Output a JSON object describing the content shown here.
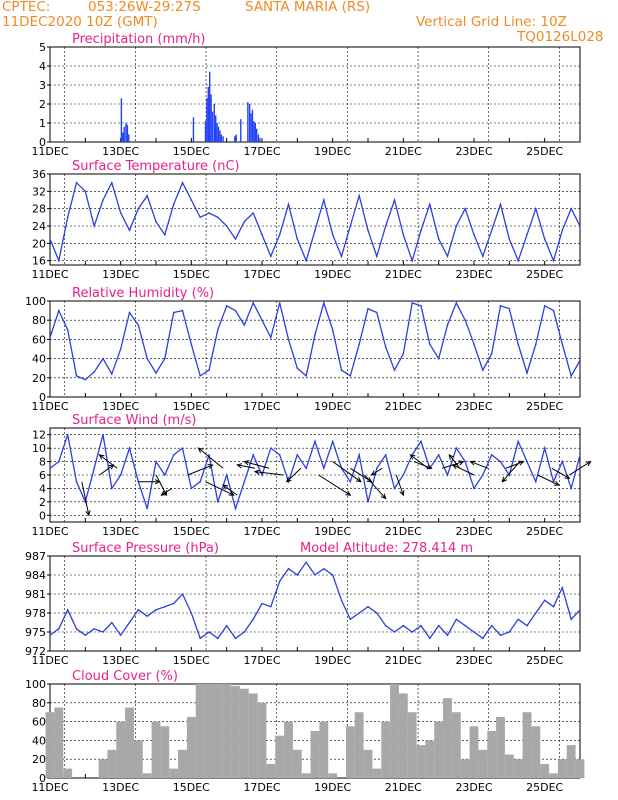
{
  "header": {
    "center_label": "CPTEC:",
    "coords": "053:26W-29:27S",
    "station": "SANTA MARIA (RS)",
    "run": "11DEC2020 10Z (GMT)",
    "grid_note": "Vertical Grid Line: 10Z",
    "model_code": "TQ0126L028"
  },
  "colors": {
    "header": "#f08a24",
    "title": "#e8208c",
    "line": "#2b3fe0",
    "bar": "#2442f5",
    "cloud": "#a8a8a8",
    "arrow": "#000000"
  },
  "chart_data": [
    {
      "type": "bar",
      "title": "Precipitation (mm/h)",
      "ylim": [
        0,
        5
      ],
      "yticks": [
        0,
        1,
        2,
        3,
        4,
        5
      ],
      "xticks": [
        "11DEC",
        "13DEC",
        "15DEC",
        "17DEC",
        "19DEC",
        "21DEC",
        "23DEC",
        "25DEC"
      ],
      "x_units": "days since 11DEC 00Z",
      "x": [
        2.0,
        2.04,
        2.08,
        2.13,
        2.17,
        2.21,
        4.04,
        4.38,
        4.42,
        4.46,
        4.5,
        4.54,
        4.58,
        4.63,
        4.67,
        4.71,
        4.75,
        4.79,
        4.83,
        4.88,
        5.21,
        5.25,
        5.38,
        5.58,
        5.63,
        5.67,
        5.71,
        5.75,
        5.79,
        5.83,
        5.88,
        5.92,
        7.0,
        8.5,
        10.5,
        12.0,
        13.5
      ],
      "values": [
        2.3,
        0.5,
        0.8,
        1.0,
        0.9,
        0.4,
        1.3,
        1.1,
        2.3,
        2.9,
        3.7,
        2.5,
        1.6,
        2.0,
        1.4,
        1.0,
        0.8,
        0.6,
        0.4,
        0.3,
        0.3,
        0.4,
        1.2,
        2.1,
        2.0,
        1.5,
        1.7,
        1.1,
        1.0,
        0.7,
        0.4,
        0.2,
        0.05,
        0.05,
        0.05,
        0.05,
        0.05
      ]
    },
    {
      "type": "line",
      "title": "Surface Temperature (nC)",
      "ylim": [
        15,
        36
      ],
      "yticks": [
        16,
        20,
        24,
        28,
        32,
        36
      ],
      "xticks": [
        "11DEC",
        "13DEC",
        "15DEC",
        "17DEC",
        "19DEC",
        "21DEC",
        "23DEC",
        "25DEC"
      ],
      "x": [
        0,
        0.25,
        0.5,
        0.75,
        1,
        1.25,
        1.5,
        1.75,
        2,
        2.25,
        2.5,
        2.75,
        3,
        3.25,
        3.5,
        3.75,
        4,
        4.25,
        4.5,
        4.75,
        5,
        5.25,
        5.5,
        5.75,
        6,
        6.25,
        6.5,
        6.75,
        7,
        7.25,
        7.5,
        7.75,
        8,
        8.25,
        8.5,
        8.75,
        9,
        9.25,
        9.5,
        9.75,
        10,
        10.25,
        10.5,
        10.75,
        11,
        11.25,
        11.5,
        11.75,
        12,
        12.25,
        12.5,
        12.75,
        13,
        13.25,
        13.5,
        13.75,
        14,
        14.25,
        14.5,
        14.75,
        15
      ],
      "values": [
        21,
        16,
        26,
        34,
        32,
        24,
        30,
        34,
        27,
        23,
        28,
        31,
        25,
        22,
        29,
        34,
        30,
        26,
        27,
        26,
        24,
        21,
        25,
        27,
        22,
        17,
        22,
        29,
        21,
        16,
        23,
        30,
        22,
        17,
        24,
        31,
        23,
        17,
        24,
        30,
        22,
        16,
        23,
        29,
        21,
        17,
        24,
        28,
        22,
        17,
        23,
        29,
        21,
        16,
        22,
        28,
        21,
        16,
        23,
        28,
        24
      ],
      "xlabel": "",
      "ylabel": ""
    },
    {
      "type": "line",
      "title": "Relative Humidity (%)",
      "ylim": [
        0,
        100
      ],
      "yticks": [
        0,
        20,
        40,
        60,
        80,
        100
      ],
      "xticks": [
        "11DEC",
        "13DEC",
        "15DEC",
        "17DEC",
        "19DEC",
        "21DEC",
        "23DEC",
        "25DEC"
      ],
      "x": [
        0,
        0.25,
        0.5,
        0.75,
        1,
        1.25,
        1.5,
        1.75,
        2,
        2.25,
        2.5,
        2.75,
        3,
        3.25,
        3.5,
        3.75,
        4,
        4.25,
        4.5,
        4.75,
        5,
        5.25,
        5.5,
        5.75,
        6,
        6.25,
        6.5,
        6.75,
        7,
        7.25,
        7.5,
        7.75,
        8,
        8.25,
        8.5,
        8.75,
        9,
        9.25,
        9.5,
        9.75,
        10,
        10.25,
        10.5,
        10.75,
        11,
        11.25,
        11.5,
        11.75,
        12,
        12.25,
        12.5,
        12.75,
        13,
        13.25,
        13.5,
        13.75,
        14,
        14.25,
        14.5,
        14.75,
        15
      ],
      "values": [
        62,
        90,
        70,
        22,
        18,
        26,
        40,
        24,
        50,
        88,
        75,
        40,
        25,
        40,
        88,
        90,
        55,
        22,
        28,
        70,
        95,
        90,
        75,
        98,
        80,
        62,
        98,
        60,
        30,
        22,
        65,
        98,
        70,
        28,
        22,
        55,
        92,
        88,
        52,
        28,
        45,
        98,
        95,
        55,
        40,
        75,
        98,
        80,
        55,
        28,
        45,
        95,
        92,
        55,
        25,
        55,
        95,
        90,
        55,
        22,
        38
      ],
      "xlabel": "",
      "ylabel": ""
    },
    {
      "type": "line",
      "title": "Surface Wind (m/s)",
      "ylim": [
        -1,
        13
      ],
      "yticks": [
        0,
        2,
        4,
        6,
        8,
        10,
        12
      ],
      "xticks": [
        "11DEC",
        "13DEC",
        "15DEC",
        "17DEC",
        "19DEC",
        "21DEC",
        "23DEC",
        "25DEC"
      ],
      "x": [
        0,
        0.25,
        0.5,
        0.75,
        1,
        1.25,
        1.5,
        1.75,
        2,
        2.25,
        2.5,
        2.75,
        3,
        3.25,
        3.5,
        3.75,
        4,
        4.25,
        4.5,
        4.75,
        5,
        5.25,
        5.5,
        5.75,
        6,
        6.25,
        6.5,
        6.75,
        7,
        7.25,
        7.5,
        7.75,
        8,
        8.25,
        8.5,
        8.75,
        9,
        9.25,
        9.5,
        9.75,
        10,
        10.25,
        10.5,
        10.75,
        11,
        11.25,
        11.5,
        11.75,
        12,
        12.25,
        12.5,
        12.75,
        13,
        13.25,
        13.5,
        13.75,
        14,
        14.25,
        14.5,
        14.75,
        15
      ],
      "values": [
        7,
        8,
        12,
        5,
        2,
        7,
        12,
        4,
        6,
        10,
        5,
        1,
        8,
        6,
        9,
        10,
        4,
        5,
        9,
        2,
        6,
        1,
        5,
        9,
        6,
        10,
        9,
        5,
        9,
        7,
        11,
        7,
        11,
        7,
        5,
        9,
        2,
        7,
        9,
        4,
        6,
        9,
        11,
        7,
        9,
        6,
        10,
        8,
        4,
        6,
        9,
        8,
        6,
        11,
        8,
        5,
        10,
        5,
        8,
        4,
        9
      ],
      "arrows_x": [
        0.9,
        1.4,
        1.9,
        2.5,
        3.0,
        3.45,
        3.9,
        4.4,
        4.9,
        5.3,
        5.8,
        6.2,
        6.6,
        7.1,
        7.6,
        8.0,
        8.5,
        8.9,
        9.4,
        9.8,
        10.3,
        10.7,
        11.1,
        11.6,
        12.0,
        12.4,
        12.9,
        13.3,
        13.8,
        14.2,
        14.7
      ],
      "arrows_y": [
        5,
        6,
        7,
        5,
        6,
        4,
        6,
        5,
        7,
        3,
        7,
        7,
        6,
        7,
        6,
        8,
        7,
        6,
        7,
        6,
        8,
        7,
        7,
        7,
        6,
        7,
        7,
        8,
        6,
        7,
        6
      ],
      "arrows_dx": [
        0.2,
        0.4,
        -0.5,
        0.6,
        0.3,
        -0.3,
        0.7,
        0.8,
        -0.7,
        -0.4,
        -0.5,
        -0.7,
        -0.8,
        -0.4,
        0.9,
        0.8,
        0.6,
        0.6,
        -0.3,
        0.2,
        0.5,
        -0.5,
        0.6,
        -0.3,
        -0.6,
        -0.5,
        0.5,
        -0.5,
        0.6,
        0.5,
        0.6
      ],
      "arrows_dy": [
        -5,
        1.5,
        2,
        0,
        -3,
        -1,
        1.5,
        -2,
        3,
        1.5,
        0.5,
        1,
        0.5,
        -2,
        -3,
        -3,
        -2,
        -3.5,
        -1,
        -3,
        -1,
        2,
        1,
        2,
        1.5,
        1,
        1,
        -3,
        -1.5,
        -1.5,
        2
      ],
      "xlabel": "",
      "ylabel": ""
    },
    {
      "type": "line",
      "title": "Surface Pressure (hPa)",
      "annotation": "Model Altitude: 278.414 m",
      "ylim": [
        972,
        987
      ],
      "yticks": [
        972,
        975,
        978,
        981,
        984,
        987
      ],
      "xticks": [
        "11DEC",
        "13DEC",
        "15DEC",
        "17DEC",
        "19DEC",
        "21DEC",
        "23DEC",
        "25DEC"
      ],
      "x": [
        0,
        0.25,
        0.5,
        0.75,
        1,
        1.25,
        1.5,
        1.75,
        2,
        2.25,
        2.5,
        2.75,
        3,
        3.25,
        3.5,
        3.75,
        4,
        4.25,
        4.5,
        4.75,
        5,
        5.25,
        5.5,
        5.75,
        6,
        6.25,
        6.5,
        6.75,
        7,
        7.25,
        7.5,
        7.75,
        8,
        8.25,
        8.5,
        8.75,
        9,
        9.25,
        9.5,
        9.75,
        10,
        10.25,
        10.5,
        10.75,
        11,
        11.25,
        11.5,
        11.75,
        12,
        12.25,
        12.5,
        12.75,
        13,
        13.25,
        13.5,
        13.75,
        14,
        14.25,
        14.5,
        14.75,
        15
      ],
      "values": [
        974.5,
        975.5,
        978.5,
        975.5,
        974.5,
        975.5,
        975,
        976.5,
        974.5,
        976.5,
        978.5,
        977.5,
        978.5,
        979,
        979.5,
        981,
        978,
        974,
        975,
        974,
        976,
        974,
        975,
        977,
        979.5,
        979,
        983,
        985,
        984,
        986,
        984,
        985,
        984,
        980,
        977,
        978,
        979,
        978,
        976,
        975,
        976,
        975,
        976,
        974,
        976,
        974.5,
        977,
        976,
        975,
        974,
        976,
        974.5,
        975,
        977,
        976,
        978,
        980,
        979,
        982,
        977,
        978.5
      ],
      "xlabel": "",
      "ylabel": ""
    },
    {
      "type": "bar",
      "title": "Cloud Cover (%)",
      "ylim": [
        0,
        100
      ],
      "yticks": [
        0,
        20,
        40,
        60,
        80,
        100
      ],
      "xticks": [
        "11DEC",
        "13DEC",
        "15DEC",
        "17DEC",
        "19DEC",
        "21DEC",
        "23DEC",
        "25DEC"
      ],
      "x": [
        0,
        0.25,
        0.5,
        0.75,
        1,
        1.25,
        1.5,
        1.75,
        2,
        2.25,
        2.5,
        2.75,
        3,
        3.25,
        3.5,
        3.75,
        4,
        4.25,
        4.5,
        4.75,
        5,
        5.25,
        5.5,
        5.75,
        6,
        6.25,
        6.5,
        6.75,
        7,
        7.25,
        7.5,
        7.75,
        8,
        8.25,
        8.5,
        8.75,
        9,
        9.25,
        9.5,
        9.75,
        10,
        10.25,
        10.5,
        10.75,
        11,
        11.25,
        11.5,
        11.75,
        12,
        12.25,
        12.5,
        12.75,
        13,
        13.25,
        13.5,
        13.75,
        14,
        14.25,
        14.5,
        14.75,
        15
      ],
      "values": [
        70,
        75,
        10,
        0,
        0,
        0,
        20,
        30,
        60,
        75,
        40,
        5,
        60,
        55,
        10,
        30,
        65,
        100,
        100,
        100,
        100,
        98,
        95,
        90,
        80,
        15,
        45,
        60,
        30,
        5,
        50,
        60,
        5,
        0,
        55,
        70,
        30,
        10,
        60,
        100,
        90,
        70,
        35,
        40,
        60,
        85,
        70,
        20,
        55,
        30,
        50,
        65,
        25,
        20,
        70,
        55,
        15,
        5,
        20,
        35,
        20
      ],
      "xlabel": "",
      "ylabel": ""
    }
  ]
}
